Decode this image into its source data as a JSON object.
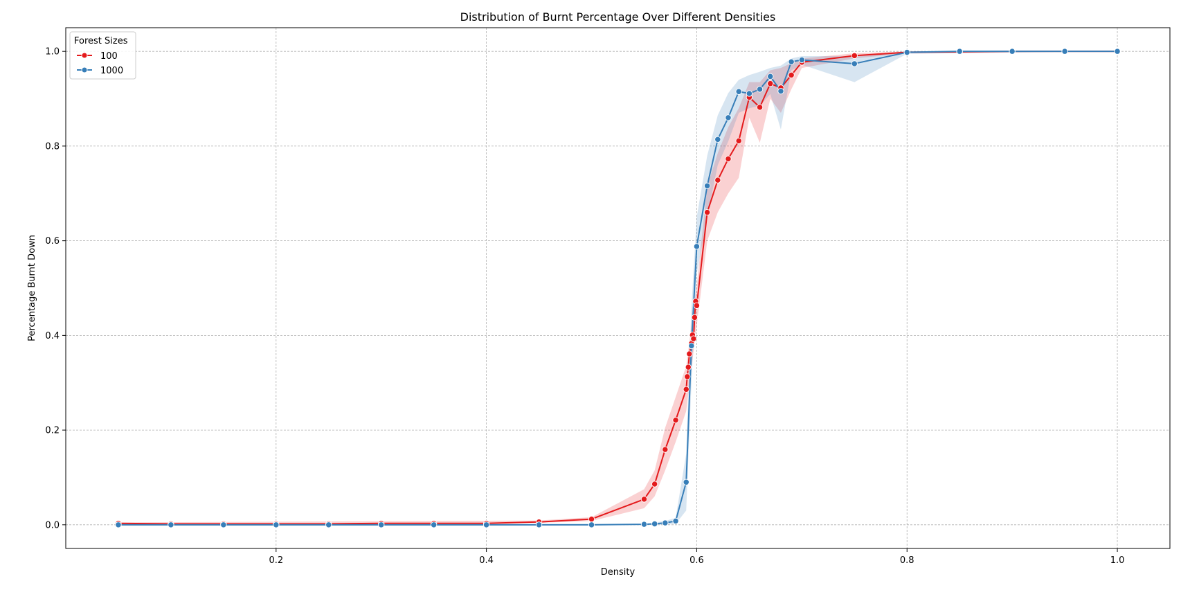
{
  "chart_data": {
    "type": "line",
    "title": "Distribution of Burnt Percentage Over Different Densities",
    "xlabel": "Density",
    "ylabel": "Percentage Burnt Down",
    "xlim": [
      0.0,
      1.05
    ],
    "ylim": [
      -0.05,
      1.05
    ],
    "xticks": [
      0.2,
      0.4,
      0.6,
      0.8,
      1.0
    ],
    "xtick_labels": [
      "0.2",
      "0.4",
      "0.6",
      "0.8",
      "1.0"
    ],
    "yticks": [
      0.0,
      0.2,
      0.4,
      0.6,
      0.8,
      1.0
    ],
    "ytick_labels": [
      "0.0",
      "0.2",
      "0.4",
      "0.6",
      "0.8",
      "1.0"
    ],
    "grid": true,
    "legend": {
      "title": "Forest Sizes",
      "placement": "top-left"
    },
    "series": [
      {
        "name": "100",
        "color": "#e41a1c",
        "points": [
          [
            0.05,
            0.003
          ],
          [
            0.1,
            0.002
          ],
          [
            0.15,
            0.002
          ],
          [
            0.2,
            0.002
          ],
          [
            0.25,
            0.002
          ],
          [
            0.3,
            0.003
          ],
          [
            0.35,
            0.003
          ],
          [
            0.4,
            0.003
          ],
          [
            0.45,
            0.006
          ],
          [
            0.5,
            0.012
          ],
          [
            0.55,
            0.054
          ],
          [
            0.56,
            0.086
          ],
          [
            0.57,
            0.159
          ],
          [
            0.58,
            0.221
          ],
          [
            0.59,
            0.286
          ],
          [
            0.591,
            0.313
          ],
          [
            0.592,
            0.333
          ],
          [
            0.593,
            0.361
          ],
          [
            0.595,
            0.383
          ],
          [
            0.596,
            0.401
          ],
          [
            0.597,
            0.393
          ],
          [
            0.598,
            0.438
          ],
          [
            0.599,
            0.472
          ],
          [
            0.6,
            0.463
          ],
          [
            0.61,
            0.66
          ],
          [
            0.62,
            0.728
          ],
          [
            0.63,
            0.773
          ],
          [
            0.64,
            0.811
          ],
          [
            0.65,
            0.903
          ],
          [
            0.66,
            0.882
          ],
          [
            0.67,
            0.932
          ],
          [
            0.68,
            0.923
          ],
          [
            0.69,
            0.95
          ],
          [
            0.7,
            0.977
          ],
          [
            0.75,
            0.991
          ],
          [
            0.8,
            0.998
          ],
          [
            0.85,
            0.999
          ],
          [
            0.9,
            1.0
          ],
          [
            0.95,
            1.0
          ],
          [
            1.0,
            1.0
          ]
        ],
        "ci_band": [
          [
            0.05,
            0.001,
            0.005
          ],
          [
            0.45,
            0.004,
            0.009
          ],
          [
            0.5,
            0.008,
            0.016
          ],
          [
            0.55,
            0.035,
            0.075
          ],
          [
            0.56,
            0.06,
            0.115
          ],
          [
            0.57,
            0.115,
            0.205
          ],
          [
            0.58,
            0.175,
            0.27
          ],
          [
            0.59,
            0.24,
            0.335
          ],
          [
            0.6,
            0.42,
            0.505
          ],
          [
            0.61,
            0.6,
            0.715
          ],
          [
            0.62,
            0.66,
            0.785
          ],
          [
            0.63,
            0.7,
            0.84
          ],
          [
            0.64,
            0.733,
            0.88
          ],
          [
            0.65,
            0.86,
            0.935
          ],
          [
            0.66,
            0.807,
            0.935
          ],
          [
            0.67,
            0.9,
            0.96
          ],
          [
            0.68,
            0.87,
            0.965
          ],
          [
            0.69,
            0.92,
            0.975
          ],
          [
            0.7,
            0.965,
            0.985
          ],
          [
            0.75,
            0.985,
            0.996
          ],
          [
            0.8,
            0.996,
            1.0
          ],
          [
            1.0,
            1.0,
            1.0
          ]
        ]
      },
      {
        "name": "1000",
        "color": "#377eb8",
        "points": [
          [
            0.05,
            0.0
          ],
          [
            0.1,
            0.0
          ],
          [
            0.15,
            0.0
          ],
          [
            0.2,
            0.0
          ],
          [
            0.25,
            0.0
          ],
          [
            0.3,
            0.0
          ],
          [
            0.35,
            0.0
          ],
          [
            0.4,
            0.0
          ],
          [
            0.45,
            0.0
          ],
          [
            0.5,
            0.0
          ],
          [
            0.55,
            0.001
          ],
          [
            0.56,
            0.002
          ],
          [
            0.57,
            0.004
          ],
          [
            0.58,
            0.008
          ],
          [
            0.59,
            0.09
          ],
          [
            0.595,
            0.378
          ],
          [
            0.6,
            0.588
          ],
          [
            0.61,
            0.716
          ],
          [
            0.62,
            0.814
          ],
          [
            0.63,
            0.86
          ],
          [
            0.64,
            0.915
          ],
          [
            0.65,
            0.911
          ],
          [
            0.66,
            0.92
          ],
          [
            0.67,
            0.947
          ],
          [
            0.68,
            0.916
          ],
          [
            0.69,
            0.978
          ],
          [
            0.7,
            0.982
          ],
          [
            0.75,
            0.974
          ],
          [
            0.8,
            0.998
          ],
          [
            0.85,
            1.0
          ],
          [
            0.9,
            1.0
          ],
          [
            0.95,
            1.0
          ],
          [
            1.0,
            1.0
          ]
        ],
        "ci_band": [
          [
            0.05,
            0.0,
            0.001
          ],
          [
            0.55,
            0.0,
            0.002
          ],
          [
            0.57,
            0.0,
            0.008
          ],
          [
            0.58,
            0.002,
            0.015
          ],
          [
            0.59,
            0.03,
            0.15
          ],
          [
            0.595,
            0.3,
            0.46
          ],
          [
            0.6,
            0.53,
            0.65
          ],
          [
            0.61,
            0.65,
            0.78
          ],
          [
            0.62,
            0.76,
            0.865
          ],
          [
            0.63,
            0.81,
            0.912
          ],
          [
            0.64,
            0.87,
            0.94
          ],
          [
            0.65,
            0.88,
            0.95
          ],
          [
            0.66,
            0.885,
            0.957
          ],
          [
            0.67,
            0.91,
            0.965
          ],
          [
            0.68,
            0.835,
            0.97
          ],
          [
            0.69,
            0.96,
            0.985
          ],
          [
            0.7,
            0.972,
            0.99
          ],
          [
            0.75,
            0.935,
            0.99
          ],
          [
            0.8,
            0.995,
            1.0
          ],
          [
            1.0,
            1.0,
            1.0
          ]
        ]
      }
    ]
  }
}
